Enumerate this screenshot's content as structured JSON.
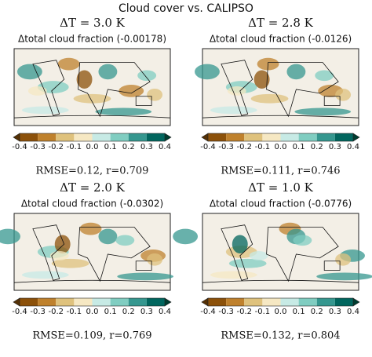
{
  "title": "Cloud cover vs. CALIPSO",
  "colorbar_ticks": [
    "-0.4",
    "-0.3",
    "-0.2",
    "-0.1",
    "0.0",
    "0.1",
    "0.2",
    "0.3",
    "0.4"
  ],
  "panels": [
    {
      "delta_t": "ΔT = 3.0 K",
      "subtitle": "Δtotal cloud fraction (-0.00178)",
      "stats": "RMSE=0.12, r=0.709"
    },
    {
      "delta_t": "ΔT = 2.8 K",
      "subtitle": "Δtotal cloud fraction (-0.0126)",
      "stats": "RMSE=0.111, r=0.746"
    },
    {
      "delta_t": "ΔT = 2.0 K",
      "subtitle": "Δtotal cloud fraction (-0.0302)",
      "stats": "RMSE=0.109, r=0.769"
    },
    {
      "delta_t": "ΔT = 1.0 K",
      "subtitle": "Δtotal cloud fraction (-0.0776)",
      "stats": "RMSE=0.132, r=0.804"
    }
  ]
}
